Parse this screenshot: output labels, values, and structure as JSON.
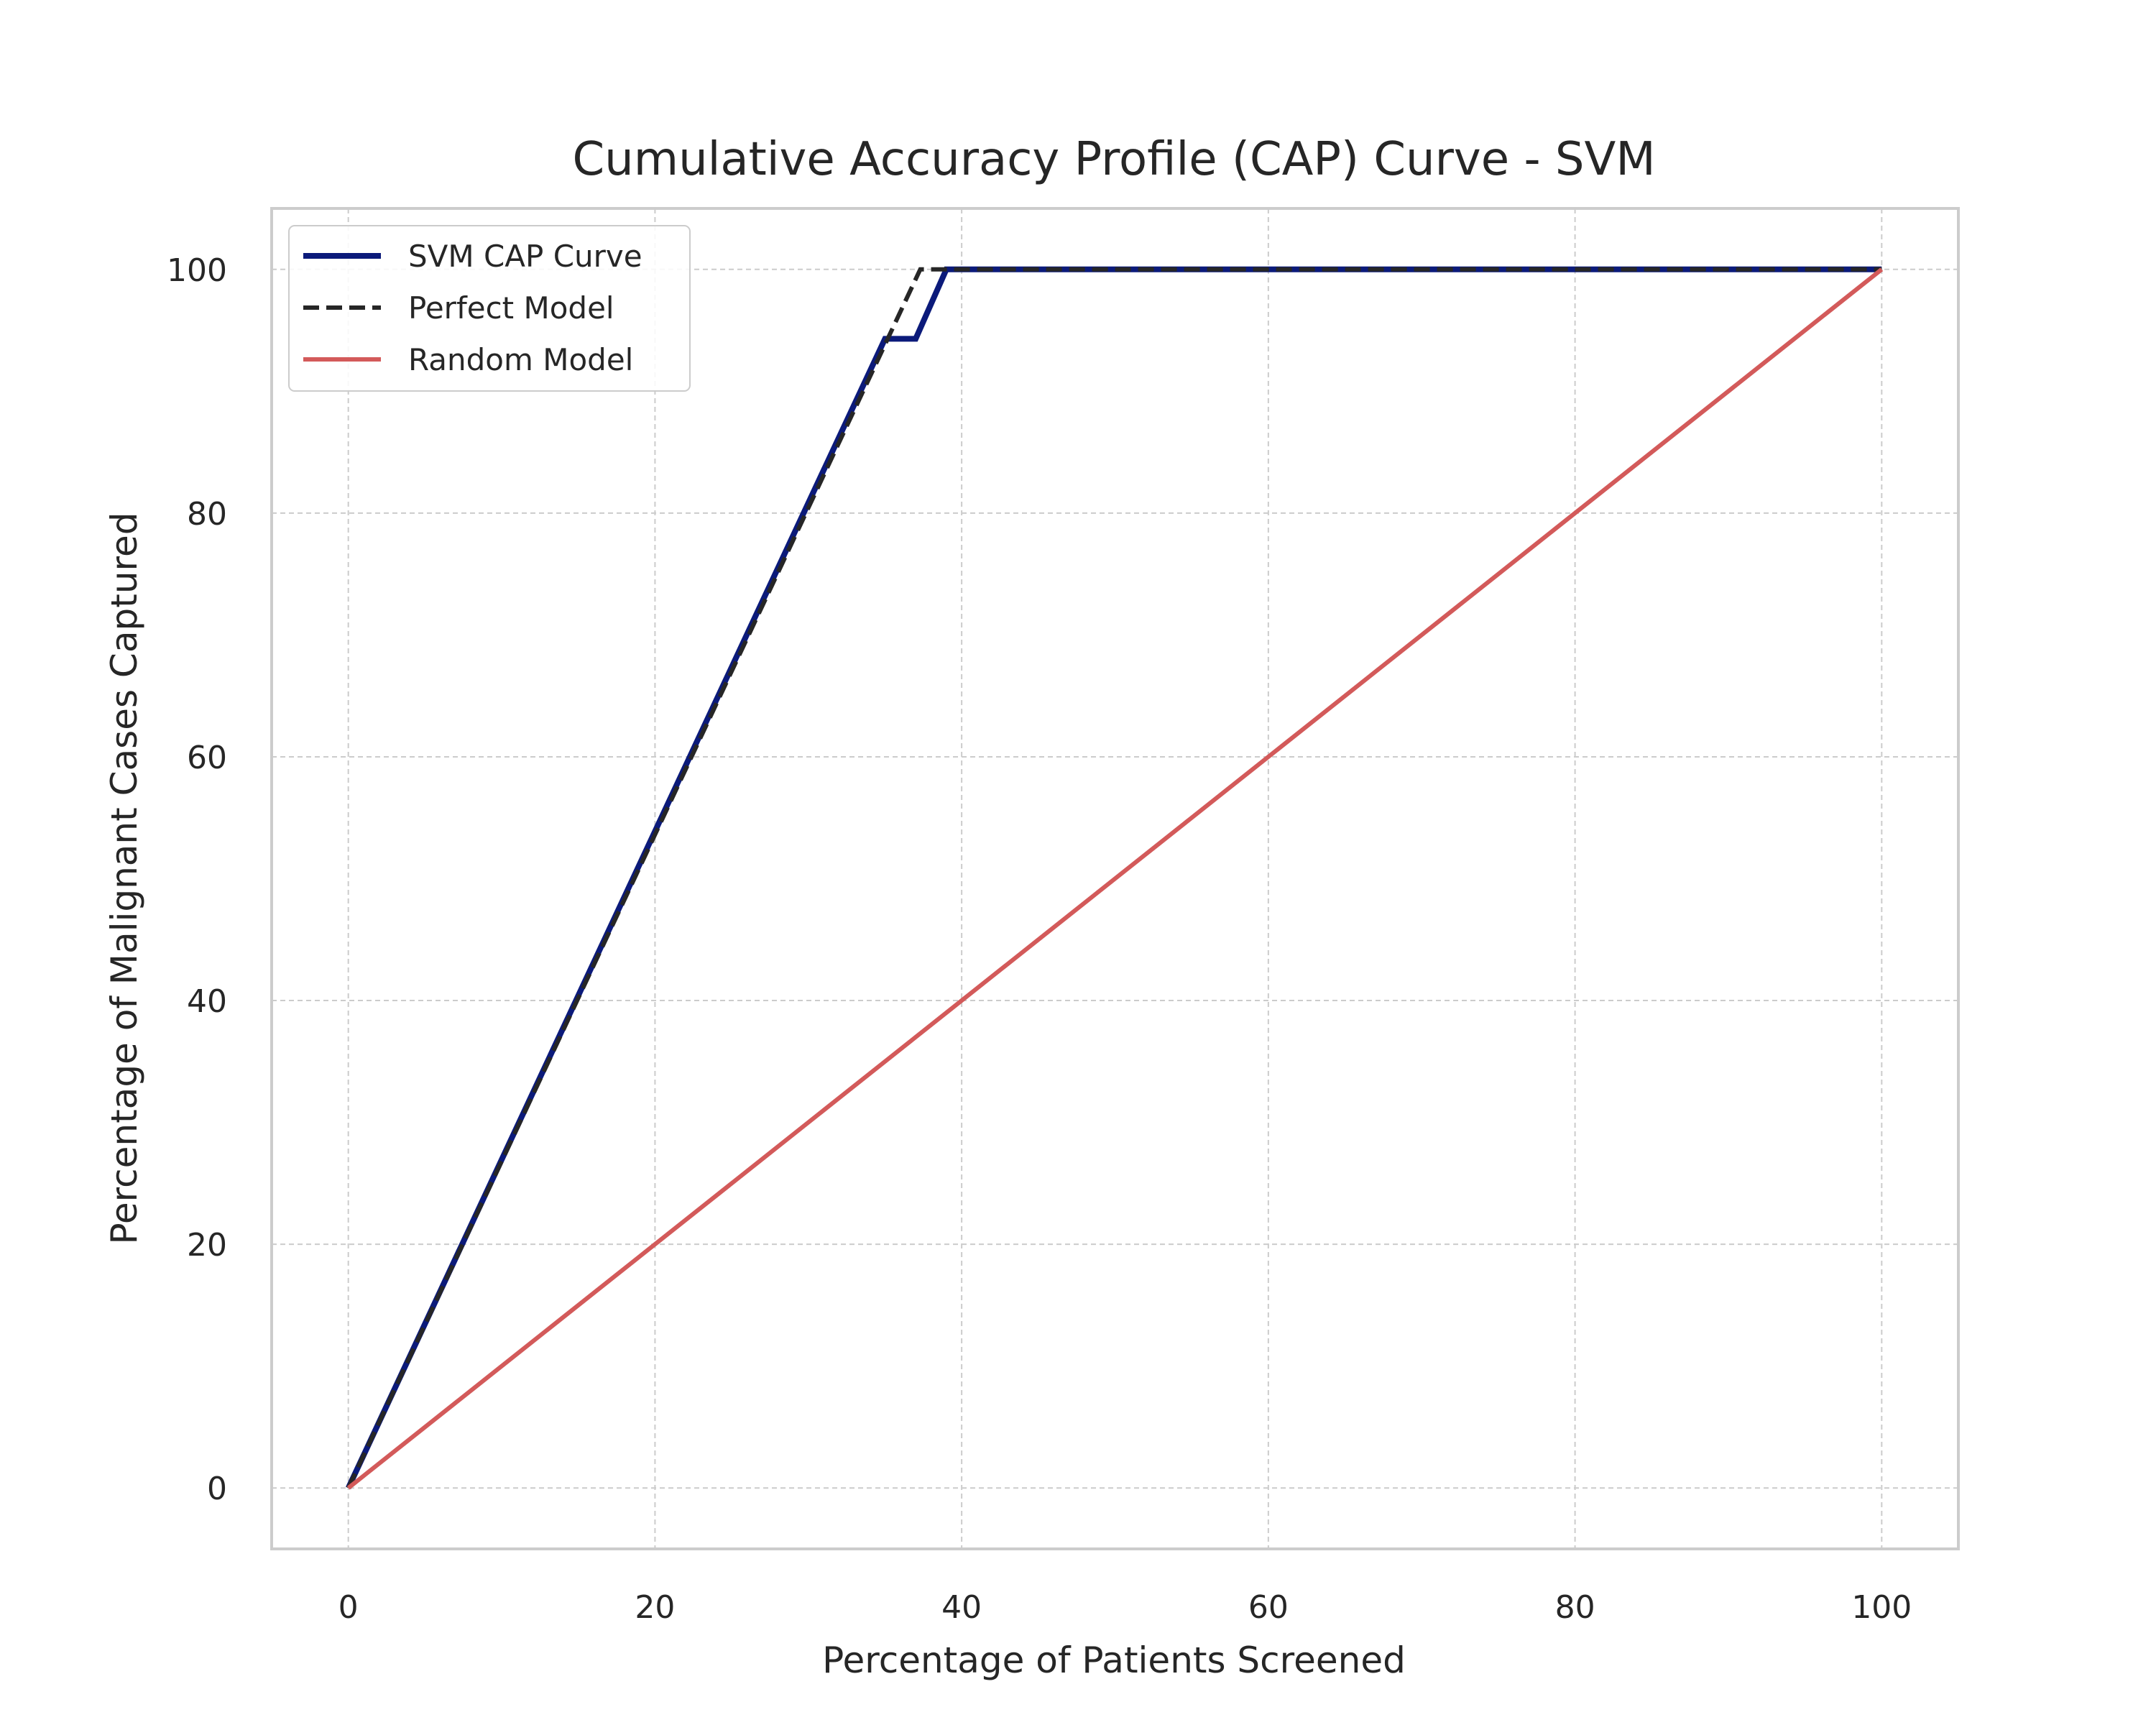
{
  "chart_data": {
    "type": "line",
    "title": "Cumulative Accuracy Profile (CAP) Curve - SVM",
    "xlabel": "Percentage of Patients Screened",
    "ylabel": "Percentage of Malignant Cases Captured",
    "xlim": [
      -5,
      105
    ],
    "ylim": [
      -5,
      105
    ],
    "xticks": [
      "0",
      "20",
      "40",
      "60",
      "80",
      "100"
    ],
    "yticks": [
      "0",
      "20",
      "40",
      "60",
      "80",
      "100"
    ],
    "grid": true,
    "legend_position": "top-left",
    "series": [
      {
        "name": "SVM CAP Curve",
        "color": "#0b1a7a",
        "style": "solid",
        "x": [
          0,
          35,
          37,
          39,
          100
        ],
        "y": [
          0,
          94.3,
          94.3,
          100,
          100
        ]
      },
      {
        "name": "Perfect Model",
        "color": "#262626",
        "style": "dashed",
        "x": [
          0,
          37.3,
          100
        ],
        "y": [
          0,
          100,
          100
        ]
      },
      {
        "name": "Random Model",
        "color": "#d35a5a",
        "style": "solid",
        "x": [
          0,
          100
        ],
        "y": [
          0,
          100
        ]
      }
    ]
  }
}
